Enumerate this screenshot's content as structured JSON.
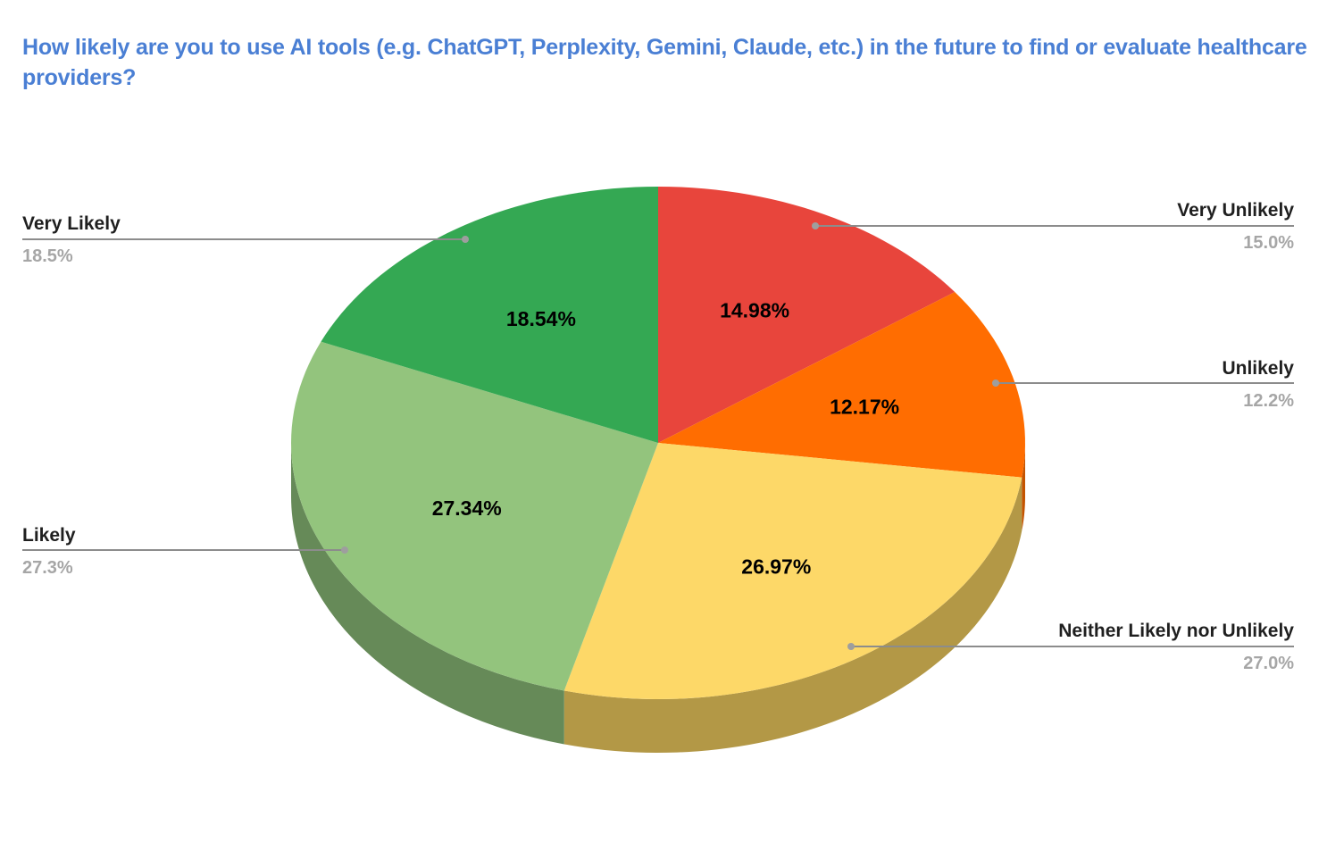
{
  "title": "How likely are you to use AI tools (e.g. ChatGPT, Perplexity, Gemini, Claude, etc.) in the future to find or evaluate healthcare providers?",
  "colors": {
    "title": "#4a7fd4",
    "leader_line": "#8c8c8c",
    "leader_dot": "#9e9e9e"
  },
  "chart_data": {
    "type": "pie",
    "style": "3d",
    "title": "How likely are you to use AI tools (e.g. ChatGPT, Perplexity, Gemini, Claude, etc.) in the future to find or evaluate healthcare providers?",
    "start_angle": "12 o'clock, clockwise",
    "legend_position": "labeled callouts",
    "slices": [
      {
        "label": "Very Unlikely",
        "value": 14.98,
        "slice_label": "14.98%",
        "callout": "15.0%",
        "color": "#e8453c",
        "side_color": "#b3352e"
      },
      {
        "label": "Unlikely",
        "value": 12.17,
        "slice_label": "12.17%",
        "callout": "12.2%",
        "color": "#ff6d01",
        "side_color": "#c45400"
      },
      {
        "label": "Neither Likely nor Unlikely",
        "value": 26.97,
        "slice_label": "26.97%",
        "callout": "27.0%",
        "color": "#fdd868",
        "side_color": "#b39846"
      },
      {
        "label": "Likely",
        "value": 27.34,
        "slice_label": "27.34%",
        "callout": "27.3%",
        "color": "#93c47d",
        "side_color": "#668a58"
      },
      {
        "label": "Very Likely",
        "value": 18.54,
        "slice_label": "18.54%",
        "callout": "18.5%",
        "color": "#34a853",
        "side_color": "#25773b"
      }
    ]
  },
  "legend": {
    "very_unlikely": {
      "name": "Very Unlikely",
      "pct": "15.0%"
    },
    "unlikely": {
      "name": "Unlikely",
      "pct": "12.2%"
    },
    "neither": {
      "name": "Neither Likely nor Unlikely",
      "pct": "27.0%"
    },
    "likely": {
      "name": "Likely",
      "pct": "27.3%"
    },
    "very_likely": {
      "name": "Very Likely",
      "pct": "18.5%"
    }
  }
}
